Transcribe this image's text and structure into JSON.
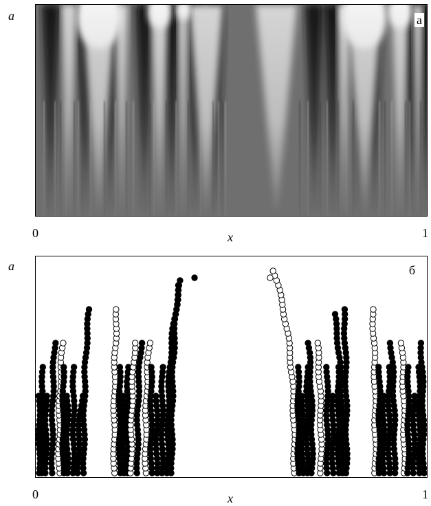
{
  "panel_a": {
    "tag": "а",
    "y_label": "a",
    "x_label": "x",
    "x_start": "0",
    "x_end": "1"
  },
  "panel_b": {
    "tag": "б",
    "y_label": "a",
    "x_label": "x",
    "x_start": "0",
    "x_end": "1"
  },
  "colors": {
    "frame": "#000000",
    "background_a": "#6f6f6f",
    "dot_fill": "#000000",
    "dot_hollow": "#ffffff"
  }
}
